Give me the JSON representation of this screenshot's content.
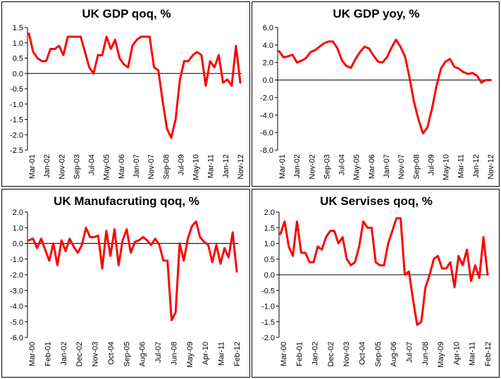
{
  "chart_data": [
    {
      "type": "line",
      "title": "UK GDP qoq, %",
      "ylim": [
        -2.5,
        1.5
      ],
      "y_ticks": [
        "1.5",
        "1.0",
        "0.5",
        "0.0",
        "-0.5",
        "-1.0",
        "-1.5",
        "-2.0",
        "-2.5"
      ],
      "x_labels": [
        "Mar-01",
        "Jan-02",
        "Nov-02",
        "Sep-03",
        "Jul-04",
        "May-05",
        "Mar-06",
        "Jan-07",
        "Nov-07",
        "Sep-08",
        "Jul-09",
        "May-10",
        "Mar-11",
        "Jan-12",
        "Nov-12"
      ],
      "series": [
        {
          "name": "UK GDP qoq",
          "color": "#ff0000",
          "values": [
            1.3,
            0.7,
            0.5,
            0.4,
            0.4,
            0.8,
            0.8,
            0.9,
            0.6,
            1.2,
            1.2,
            1.2,
            1.2,
            0.7,
            0.2,
            0.0,
            0.6,
            0.6,
            1.2,
            0.8,
            1.1,
            0.5,
            0.3,
            0.2,
            0.9,
            1.1,
            1.2,
            1.2,
            1.2,
            0.2,
            0.1,
            -0.9,
            -1.8,
            -2.1,
            -1.5,
            -0.2,
            0.4,
            0.4,
            0.6,
            0.7,
            0.6,
            -0.4,
            0.4,
            0.2,
            0.6,
            -0.3,
            -0.2,
            -0.4,
            0.9,
            -0.3
          ]
        }
      ]
    },
    {
      "type": "line",
      "title": "UK GDP yoy, %",
      "ylim": [
        -8,
        6
      ],
      "y_ticks": [
        "6.0",
        "4.0",
        "2.0",
        "0.0",
        "-2.0",
        "-4.0",
        "-6.0",
        "-8.0"
      ],
      "x_labels": [
        "Mar-01",
        "Jan-02",
        "Nov-02",
        "Sep-03",
        "Jul-04",
        "May-05",
        "Mar-06",
        "Jan-07",
        "Nov-07",
        "Sep-08",
        "Jul-09",
        "May-10",
        "Mar-11",
        "Jan-12",
        "Nov-12"
      ],
      "series": [
        {
          "name": "UK GDP yoy",
          "color": "#ff0000",
          "values": [
            3.3,
            2.6,
            2.7,
            2.9,
            2.0,
            2.2,
            2.5,
            3.2,
            3.4,
            3.8,
            4.2,
            4.4,
            4.4,
            3.6,
            2.2,
            1.6,
            1.4,
            2.4,
            3.2,
            3.8,
            3.6,
            2.8,
            2.1,
            2.0,
            2.6,
            3.7,
            4.6,
            3.8,
            2.7,
            0.3,
            -2.5,
            -4.5,
            -6.1,
            -5.4,
            -3.3,
            -0.7,
            1.3,
            2.1,
            2.4,
            1.5,
            1.3,
            0.9,
            0.7,
            0.8,
            0.5,
            -0.3,
            0.0,
            0.0
          ]
        }
      ]
    },
    {
      "type": "line",
      "title": "UK Manufacruting qoq, %",
      "ylim": [
        -6,
        2
      ],
      "y_ticks": [
        "2.0",
        "1.0",
        "0.0",
        "-1.0",
        "-2.0",
        "-3.0",
        "-4.0",
        "-5.0",
        "-6.0"
      ],
      "x_labels": [
        "Mar-00",
        "Feb-01",
        "Jan-02",
        "Dec-02",
        "Nov-03",
        "Oct-04",
        "Sep-05",
        "Aug-06",
        "Jul-07",
        "Jun-08",
        "May-09",
        "Apr-10",
        "Mar-11",
        "Feb-12"
      ],
      "series": [
        {
          "name": "UK Manufacturing qoq",
          "color": "#ff0000",
          "values": [
            0.2,
            0.3,
            -0.3,
            0.3,
            -0.4,
            -1.1,
            0.0,
            -1.4,
            0.2,
            -0.5,
            0.3,
            -0.2,
            -0.6,
            -0.1,
            1.0,
            0.4,
            0.4,
            0.5,
            -1.6,
            0.8,
            -0.8,
            0.9,
            -1.4,
            0.2,
            0.9,
            -0.6,
            0.1,
            0.2,
            0.4,
            0.2,
            -0.1,
            0.3,
            -0.1,
            -1.1,
            -1.1,
            -4.9,
            -4.4,
            0.0,
            -1.1,
            0.3,
            1.1,
            1.4,
            0.4,
            0.1,
            -0.1,
            -1.2,
            -0.1,
            -1.3,
            -0.3,
            -0.9,
            0.7,
            -1.8
          ]
        }
      ]
    },
    {
      "type": "line",
      "title": "UK Servises qoq, %",
      "ylim": [
        -2,
        2
      ],
      "y_ticks": [
        "2.0",
        "1.5",
        "1.0",
        "0.5",
        "0.0",
        "-0.5",
        "-1.0",
        "-1.5",
        "-2.0"
      ],
      "x_labels": [
        "Mar-00",
        "Feb-01",
        "Jan-02",
        "Dec-02",
        "Nov-03",
        "Oct-04",
        "Sep-05",
        "Aug-06",
        "Jul-07",
        "Jun-08",
        "May-09",
        "Apr-10",
        "Mar-11",
        "Feb-12"
      ],
      "series": [
        {
          "name": "UK Services qoq",
          "color": "#ff0000",
          "values": [
            1.3,
            1.7,
            0.9,
            0.6,
            1.7,
            0.7,
            0.7,
            0.4,
            0.4,
            0.9,
            0.8,
            1.2,
            1.4,
            1.4,
            1.0,
            1.2,
            0.5,
            0.3,
            0.4,
            0.9,
            1.7,
            1.5,
            1.5,
            0.4,
            0.3,
            0.3,
            1.0,
            1.4,
            1.8,
            1.8,
            0.0,
            0.1,
            -0.8,
            -1.6,
            -1.5,
            -0.4,
            0.0,
            0.5,
            0.6,
            0.2,
            0.2,
            0.4,
            -0.4,
            0.6,
            0.3,
            0.8,
            -0.2,
            0.3,
            -0.1,
            1.2,
            0.0
          ]
        }
      ]
    }
  ]
}
